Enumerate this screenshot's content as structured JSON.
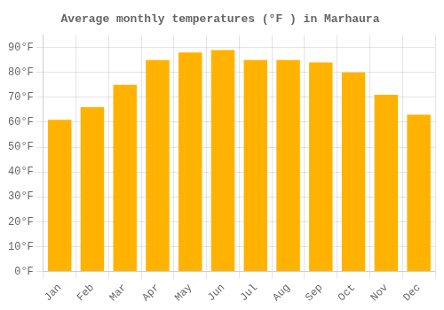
{
  "chart_data": {
    "type": "bar",
    "title": "Average monthly temperatures (°F ) in Marhaura",
    "categories": [
      "Jan",
      "Feb",
      "Mar",
      "Apr",
      "May",
      "Jun",
      "Jul",
      "Aug",
      "Sep",
      "Oct",
      "Nov",
      "Dec"
    ],
    "values": [
      61,
      66,
      75,
      85,
      88,
      89,
      85,
      85,
      84,
      80,
      71,
      63
    ],
    "color": "#FFB300",
    "ylim": [
      0,
      95
    ],
    "yticks": [
      {
        "value": 0,
        "label": "0°F"
      },
      {
        "value": 10,
        "label": "10°F"
      },
      {
        "value": 20,
        "label": "20°F"
      },
      {
        "value": 30,
        "label": "30°F"
      },
      {
        "value": 40,
        "label": "40°F"
      },
      {
        "value": 50,
        "label": "50°F"
      },
      {
        "value": 60,
        "label": "60°F"
      },
      {
        "value": 70,
        "label": "70°F"
      },
      {
        "value": 80,
        "label": "80°F"
      },
      {
        "value": 90,
        "label": "90°F"
      }
    ],
    "grid": true
  }
}
